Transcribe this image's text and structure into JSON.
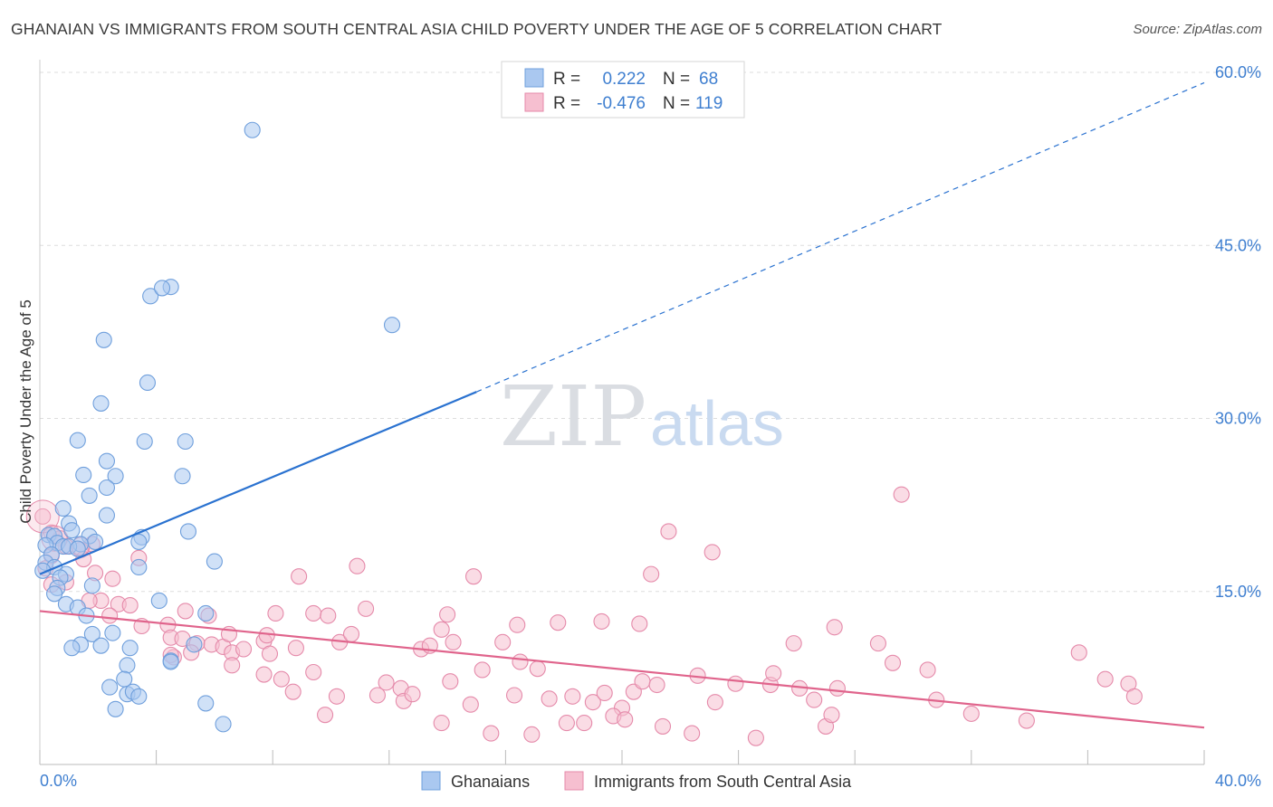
{
  "title": "GHANAIAN VS IMMIGRANTS FROM SOUTH CENTRAL ASIA CHILD POVERTY UNDER THE AGE OF 5 CORRELATION CHART",
  "source": "Source: ZipAtlas.com",
  "watermark": {
    "zip": "ZIP",
    "atlas": "atlas"
  },
  "colors": {
    "blue_fill": "#aac8f0",
    "blue_stroke": "#6f9fdc",
    "blue_line": "#2a72d0",
    "pink_fill": "#f6bfd0",
    "pink_stroke": "#e58aaa",
    "pink_line": "#e0648c",
    "grid": "#dddddd",
    "axis_label": "#3f7fd0"
  },
  "legend": {
    "rows": [
      {
        "r_label": "R =",
        "r_value": "0.222",
        "n_label": "N =",
        "n_value": "68"
      },
      {
        "r_label": "R =",
        "r_value": "-0.476",
        "n_label": "N =",
        "n_value": "119"
      }
    ]
  },
  "bottom_legend": [
    "Ghanaians",
    "Immigrants from South Central Asia"
  ],
  "chart_data": {
    "type": "scatter",
    "title": "GHANAIAN VS IMMIGRANTS FROM SOUTH CENTRAL ASIA CHILD POVERTY UNDER THE AGE OF 5 CORRELATION CHART",
    "xlabel": "",
    "ylabel": "Child Poverty Under the Age of 5",
    "xlim": [
      0,
      40
    ],
    "ylim": [
      0,
      60
    ],
    "x_tick_labels": [
      "0.0%",
      "40.0%"
    ],
    "y_ticks": [
      15,
      30,
      45,
      60
    ],
    "y_tick_labels": [
      "15.0%",
      "30.0%",
      "45.0%",
      "60.0%"
    ],
    "grid": true,
    "series": [
      {
        "name": "Ghanaians",
        "r": 0.222,
        "n": 68,
        "trend": {
          "x0": 0,
          "y0": 16.5,
          "x1": 15,
          "y1": 32.3,
          "dashed_to_x": 40,
          "dashed_to_y": 59.1
        },
        "points": [
          [
            7.3,
            55
          ],
          [
            3.8,
            40.6
          ],
          [
            4.5,
            41.4
          ],
          [
            4.2,
            41.3
          ],
          [
            12.1,
            38.1
          ],
          [
            2.2,
            36.8
          ],
          [
            3.7,
            33.1
          ],
          [
            2.1,
            31.3
          ],
          [
            3.6,
            28
          ],
          [
            5,
            28
          ],
          [
            1.3,
            28.1
          ],
          [
            2.3,
            26.3
          ],
          [
            1.5,
            25.1
          ],
          [
            2.6,
            25
          ],
          [
            4.9,
            25
          ],
          [
            2.3,
            24
          ],
          [
            1.7,
            23.3
          ],
          [
            0.8,
            22.2
          ],
          [
            2.3,
            21.6
          ],
          [
            1.0,
            20.9
          ],
          [
            1.1,
            20.3
          ],
          [
            5.1,
            20.2
          ],
          [
            0.3,
            19.9
          ],
          [
            0.5,
            19.8
          ],
          [
            1.7,
            19.8
          ],
          [
            3.5,
            19.7
          ],
          [
            0.6,
            19.2
          ],
          [
            1.9,
            19.3
          ],
          [
            3.4,
            19.3
          ],
          [
            1.4,
            19.1
          ],
          [
            0.2,
            19.0
          ],
          [
            0.8,
            18.9
          ],
          [
            1.0,
            18.9
          ],
          [
            1.3,
            18.7
          ],
          [
            0.4,
            18.2
          ],
          [
            0.2,
            17.5
          ],
          [
            6.0,
            17.6
          ],
          [
            0.5,
            17.1
          ],
          [
            3.4,
            17.1
          ],
          [
            0.1,
            16.8
          ],
          [
            0.9,
            16.5
          ],
          [
            0.7,
            16.2
          ],
          [
            1.8,
            15.5
          ],
          [
            0.6,
            15.3
          ],
          [
            0.5,
            14.8
          ],
          [
            4.1,
            14.2
          ],
          [
            0.9,
            13.9
          ],
          [
            1.3,
            13.6
          ],
          [
            5.7,
            13.1
          ],
          [
            1.6,
            12.9
          ],
          [
            1.8,
            11.3
          ],
          [
            2.5,
            11.4
          ],
          [
            1.4,
            10.4
          ],
          [
            2.1,
            10.3
          ],
          [
            1.1,
            10.1
          ],
          [
            3.1,
            10.1
          ],
          [
            4.5,
            9.0
          ],
          [
            5.3,
            10.4
          ],
          [
            3.0,
            8.6
          ],
          [
            2.9,
            7.4
          ],
          [
            2.4,
            6.7
          ],
          [
            3.0,
            6.1
          ],
          [
            3.2,
            6.3
          ],
          [
            3.4,
            5.9
          ],
          [
            5.7,
            5.3
          ],
          [
            2.6,
            4.8
          ],
          [
            6.3,
            3.5
          ],
          [
            4.5,
            8.9
          ]
        ]
      },
      {
        "name": "Immigrants from South Central Asia",
        "r": -0.476,
        "n": 119,
        "trend": {
          "x0": 0,
          "y0": 13.3,
          "x1": 40,
          "y1": 3.2
        },
        "points": [
          [
            0.1,
            21.5
          ],
          [
            0.4,
            20.1
          ],
          [
            0.7,
            19.6
          ],
          [
            1.8,
            19.1
          ],
          [
            0.9,
            18.9
          ],
          [
            1.4,
            18.6
          ],
          [
            0.4,
            18.1
          ],
          [
            1.5,
            17.8
          ],
          [
            3.4,
            17.9
          ],
          [
            0.2,
            17.0
          ],
          [
            1.9,
            16.6
          ],
          [
            2.5,
            16.1
          ],
          [
            0.9,
            15.8
          ],
          [
            0.4,
            15.6
          ],
          [
            2.1,
            14.2
          ],
          [
            1.7,
            14.2
          ],
          [
            2.7,
            13.9
          ],
          [
            3.1,
            13.8
          ],
          [
            2.4,
            12.9
          ],
          [
            5.0,
            13.3
          ],
          [
            3.5,
            12.0
          ],
          [
            4.4,
            12.1
          ],
          [
            5.8,
            12.9
          ],
          [
            8.1,
            13.1
          ],
          [
            9.4,
            13.1
          ],
          [
            9.9,
            12.9
          ],
          [
            11.2,
            13.5
          ],
          [
            14.0,
            13.0
          ],
          [
            8.9,
            16.3
          ],
          [
            10.9,
            17.2
          ],
          [
            14.9,
            16.3
          ],
          [
            21.0,
            16.5
          ],
          [
            23.1,
            18.4
          ],
          [
            21.6,
            20.2
          ],
          [
            29.6,
            23.4
          ],
          [
            5.4,
            10.5
          ],
          [
            5.9,
            10.4
          ],
          [
            6.3,
            10.2
          ],
          [
            6.6,
            9.7
          ],
          [
            7.0,
            10.0
          ],
          [
            7.7,
            10.7
          ],
          [
            7.9,
            9.6
          ],
          [
            8.8,
            10.1
          ],
          [
            6.5,
            11.3
          ],
          [
            7.8,
            11.2
          ],
          [
            4.5,
            11.0
          ],
          [
            4.9,
            10.9
          ],
          [
            10.3,
            10.6
          ],
          [
            10.7,
            11.3
          ],
          [
            13.1,
            10.0
          ],
          [
            13.4,
            10.3
          ],
          [
            13.8,
            11.7
          ],
          [
            14.2,
            10.6
          ],
          [
            15.9,
            10.6
          ],
          [
            16.4,
            12.1
          ],
          [
            17.8,
            12.3
          ],
          [
            19.3,
            12.4
          ],
          [
            20.6,
            12.2
          ],
          [
            4.6,
            9.3
          ],
          [
            5.2,
            9.7
          ],
          [
            6.6,
            8.6
          ],
          [
            4.5,
            9.5
          ],
          [
            7.7,
            7.8
          ],
          [
            8.3,
            7.4
          ],
          [
            9.4,
            8.0
          ],
          [
            10.2,
            5.9
          ],
          [
            11.6,
            6.0
          ],
          [
            11.9,
            7.1
          ],
          [
            12.4,
            6.6
          ],
          [
            12.5,
            5.5
          ],
          [
            12.8,
            6.1
          ],
          [
            14.1,
            7.2
          ],
          [
            14.8,
            5.2
          ],
          [
            15.2,
            8.2
          ],
          [
            16.5,
            8.9
          ],
          [
            17.1,
            8.3
          ],
          [
            16.3,
            6.0
          ],
          [
            17.5,
            5.7
          ],
          [
            18.3,
            5.9
          ],
          [
            18.7,
            3.6
          ],
          [
            18.1,
            3.6
          ],
          [
            15.5,
            2.7
          ],
          [
            16.9,
            2.6
          ],
          [
            13.8,
            3.6
          ],
          [
            9.8,
            4.3
          ],
          [
            8.7,
            6.3
          ],
          [
            19.0,
            5.4
          ],
          [
            19.4,
            6.2
          ],
          [
            20.0,
            4.9
          ],
          [
            20.4,
            6.3
          ],
          [
            20.7,
            7.2
          ],
          [
            21.2,
            6.9
          ],
          [
            22.6,
            7.7
          ],
          [
            23.2,
            5.4
          ],
          [
            19.7,
            4.2
          ],
          [
            21.4,
            3.3
          ],
          [
            22.4,
            2.7
          ],
          [
            20.1,
            3.9
          ],
          [
            23.9,
            7.0
          ],
          [
            25.1,
            6.9
          ],
          [
            25.2,
            7.9
          ],
          [
            26.1,
            6.6
          ],
          [
            26.6,
            5.6
          ],
          [
            27.0,
            3.3
          ],
          [
            27.2,
            4.3
          ],
          [
            27.4,
            6.6
          ],
          [
            24.6,
            2.3
          ],
          [
            25.9,
            10.5
          ],
          [
            27.3,
            11.9
          ],
          [
            28.8,
            10.5
          ],
          [
            29.3,
            8.8
          ],
          [
            30.5,
            8.2
          ],
          [
            30.8,
            5.6
          ],
          [
            32.0,
            4.4
          ],
          [
            33.9,
            3.8
          ],
          [
            35.7,
            9.7
          ],
          [
            36.6,
            7.4
          ],
          [
            37.4,
            7.0
          ],
          [
            37.6,
            5.9
          ]
        ]
      }
    ]
  }
}
